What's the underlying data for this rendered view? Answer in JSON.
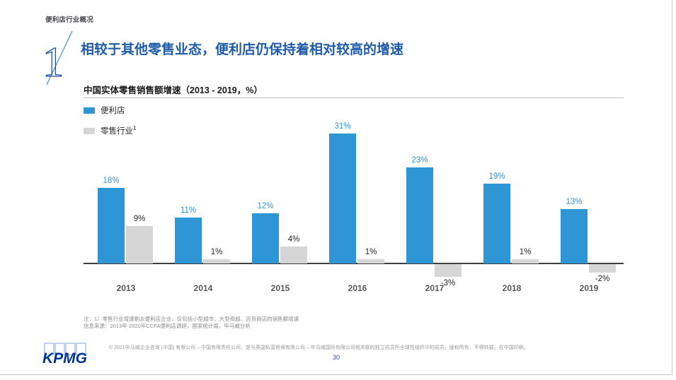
{
  "slide": {
    "eyebrow": "便利店行业概况",
    "section_number": "1",
    "title": "相较于其他零售业态，便利店仍保持着相对较高的增速"
  },
  "chart": {
    "title": "中国实体零售销售额增速（2013 - 2019，%）",
    "legend": [
      {
        "label": "便利店",
        "sup": "",
        "color": "#2E96D5"
      },
      {
        "label": "零售行业",
        "sup": "1",
        "color": "#D6D6D6"
      }
    ]
  },
  "chart_data": {
    "type": "bar",
    "title": "中国实体零售销售额增速（2013 - 2019，%）",
    "categories": [
      "2013",
      "2014",
      "2015",
      "2016",
      "2017",
      "2018",
      "2019"
    ],
    "series": [
      {
        "name": "便利店",
        "color": "#2E96D5",
        "label_color": "#2E96D5",
        "values": [
          18,
          11,
          12,
          31,
          23,
          19,
          13
        ],
        "labels": [
          "18%",
          "11%",
          "12%",
          "31%",
          "23%",
          "19%",
          "13%"
        ]
      },
      {
        "name": "零售行业",
        "color": "#D6D6D6",
        "label_color": "#262626",
        "values": [
          9,
          1,
          4,
          1,
          -3,
          1,
          -2
        ],
        "labels": [
          "9%",
          "1%",
          "4%",
          "1%",
          "-3%",
          "1%",
          "-2%"
        ]
      }
    ],
    "unit": "%",
    "ylim": [
      -5,
      35
    ],
    "grid": false,
    "legend_position": "top-left"
  },
  "footnotes": {
    "note": "注：1）零售行业增速剔去便利店企业，仅包括小型超市、大型商超、百货商店的销售额增速",
    "source": "信息来源：2013年-2020年CCFA便利店调研，国家统计局，毕马威分析"
  },
  "footer": {
    "logo": "KPMG",
    "copyright": "© 2021毕马威企业咨询 (中国) 有限公司 – 中国有限责任公司，是与英国私营担保有限公司 – 毕马威国际有限公司相关联的独立成员所全球性组织中的成员。版权所有，不得转载。在中国印刷。",
    "page_number": "30"
  },
  "colors": {
    "accent_blue": "#2E96D5",
    "bar_gray": "#D6D6D6",
    "title_blue": "#1F5CA9",
    "kpmg_navy": "#00338D"
  }
}
